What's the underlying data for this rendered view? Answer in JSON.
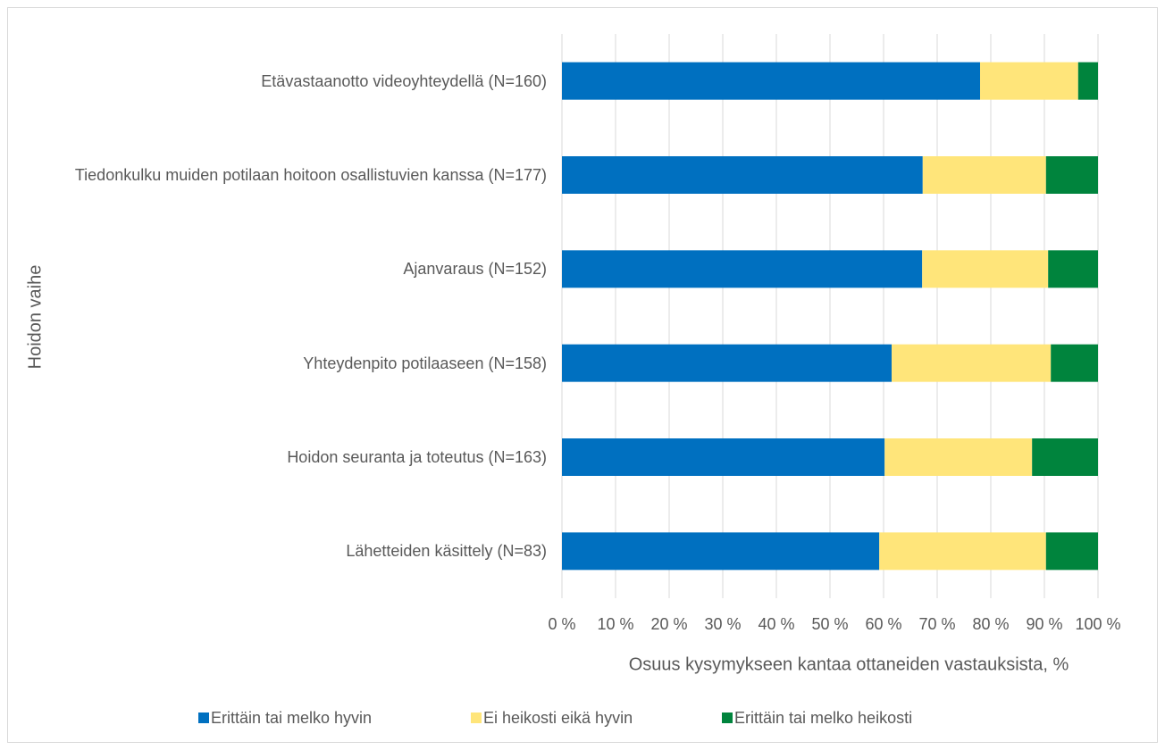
{
  "chart_data": {
    "type": "stacked_bar_horizontal",
    "categories": [
      "Etävastaanotto videoyhteydellä (N=160)",
      "Tiedonkulku muiden potilaan hoitoon osallistuvien kanssa (N=177)",
      "Ajanvaraus (N=152)",
      "Yhteydenpito potilaaseen (N=158)",
      "Hoidon seuranta ja toteutus (N=163)",
      "Lähetteiden käsittely (N=83)"
    ],
    "series": [
      {
        "name": "Erittäin tai melko hyvin",
        "color": "#0070c0",
        "values": [
          78,
          67.3,
          67.2,
          61.5,
          60.2,
          59.2
        ]
      },
      {
        "name": "Ei heikosti eikä hyvin",
        "color": "#ffe57a",
        "values": [
          18.3,
          23,
          23.5,
          29.7,
          27.5,
          31.1
        ]
      },
      {
        "name": "Erittäin tai melko heikosti",
        "color": "#00843d",
        "values": [
          3.7,
          9.7,
          9.3,
          8.8,
          12.3,
          9.7
        ]
      }
    ],
    "xlabel": "Osuus kysymykseen kantaa ottaneiden vastauksista, %",
    "ylabel": "Hoidon vaihe",
    "xlim": [
      0,
      100
    ],
    "xticks": [
      {
        "value": 0,
        "label": "0 %"
      },
      {
        "value": 10,
        "label": "10 %"
      },
      {
        "value": 20,
        "label": "20 %"
      },
      {
        "value": 30,
        "label": "30 %"
      },
      {
        "value": 40,
        "label": "40 %"
      },
      {
        "value": 50,
        "label": "50 %"
      },
      {
        "value": 60,
        "label": "60 %"
      },
      {
        "value": 70,
        "label": "70 %"
      },
      {
        "value": 80,
        "label": "80 %"
      },
      {
        "value": 90,
        "label": "90 %"
      },
      {
        "value": 100,
        "label": "100 %"
      }
    ],
    "grid": true,
    "legend": "bottom"
  }
}
